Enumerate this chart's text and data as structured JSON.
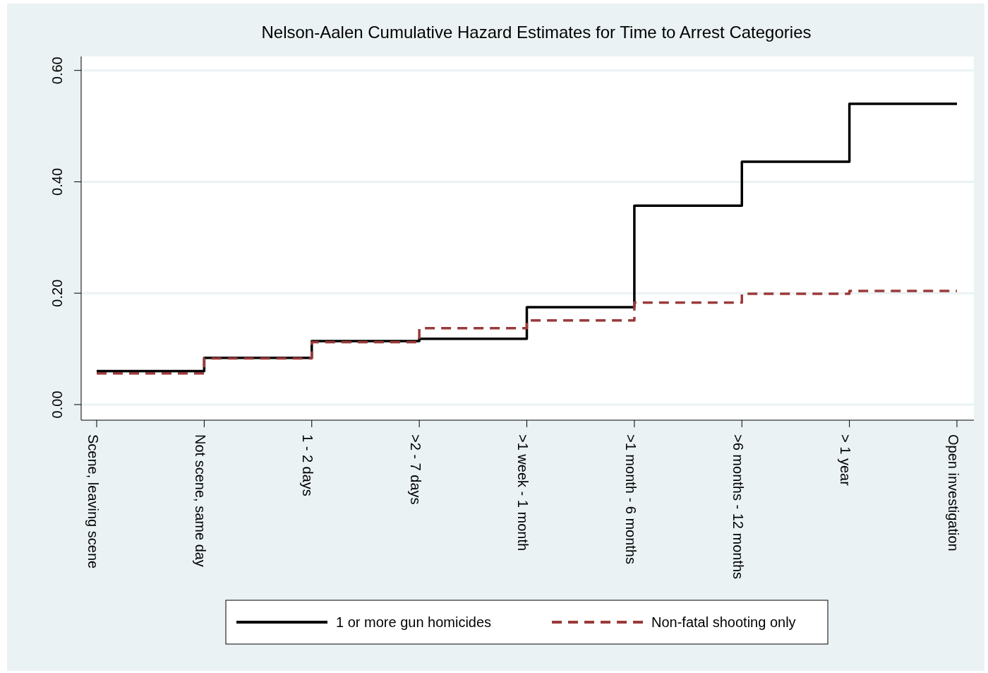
{
  "chart_data": {
    "type": "step",
    "title": "Nelson-Aalen Cumulative Hazard Estimates for Time to Arrest Categories",
    "categories": [
      "Scene, leaving scene",
      "Not scene, same day",
      "1 - 2 days",
      ">2 - 7 days",
      ">1 week - 1 month",
      ">1 month - 6 months",
      ">6 months - 12 months",
      "> 1 year",
      "Open investigation"
    ],
    "series": [
      {
        "name": "1 or more gun homicides",
        "color": "#000000",
        "line_style": "solid",
        "values": [
          0.06,
          0.084,
          0.114,
          0.118,
          0.175,
          0.357,
          0.436,
          0.54,
          0.54
        ]
      },
      {
        "name": "Non-fatal shooting only",
        "color": "#9b3a3a",
        "line_style": "dashed",
        "values": [
          0.056,
          0.083,
          0.112,
          0.137,
          0.151,
          0.183,
          0.199,
          0.204,
          0.204
        ]
      }
    ],
    "ylim": [
      -0.028,
      0.625
    ],
    "yticks": [
      {
        "value": 0,
        "label": "0.00"
      },
      {
        "value": 0.2,
        "label": "0.20"
      },
      {
        "value": 0.4,
        "label": "0.40"
      },
      {
        "value": 0.6,
        "label": "0.60"
      }
    ],
    "grid": "y",
    "legend": "bottom"
  }
}
